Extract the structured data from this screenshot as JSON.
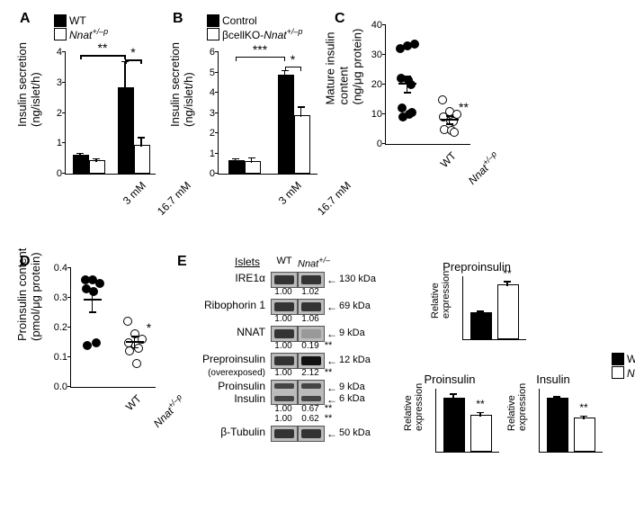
{
  "panelA": {
    "label": "A",
    "legend": [
      {
        "fill": "#000000",
        "label": "WT"
      },
      {
        "fill": "#ffffff",
        "label": "Nnat",
        "labelSup": "+/–p",
        "italic": true
      }
    ],
    "ylabel": "Insulin secretion\n(ng/islet/h)",
    "ymax": 4,
    "ytick_step": 1,
    "groups": [
      "3 mM",
      "16.7 mM"
    ],
    "bars": [
      {
        "group": 0,
        "series": 0,
        "value": 0.55,
        "err": 0.12,
        "fill": "#000000"
      },
      {
        "group": 0,
        "series": 1,
        "value": 0.4,
        "err": 0.1,
        "fill": "#ffffff"
      },
      {
        "group": 1,
        "series": 0,
        "value": 2.8,
        "err": 0.9,
        "fill": "#000000"
      },
      {
        "group": 1,
        "series": 1,
        "value": 0.9,
        "err": 0.3,
        "fill": "#ffffff"
      }
    ],
    "sig": [
      {
        "from": 0,
        "to": 2,
        "y": 3.9,
        "stars": "**"
      },
      {
        "from": 2,
        "to": 3,
        "y": 3.75,
        "stars": "*"
      }
    ]
  },
  "panelB": {
    "label": "B",
    "legend": [
      {
        "fill": "#000000",
        "label": "Control"
      },
      {
        "fill": "#ffffff",
        "label": "βcellKO-",
        "label2": "Nnat",
        "labelSup": "+/–p",
        "italic2": true
      }
    ],
    "ylabel": "Insulin secretion\n(ng/islet/h)",
    "ymax": 6,
    "ytick_step": 1,
    "groups": [
      "3 mM",
      "16.7 mM"
    ],
    "bars": [
      {
        "group": 0,
        "series": 0,
        "value": 0.6,
        "err": 0.15,
        "fill": "#000000"
      },
      {
        "group": 0,
        "series": 1,
        "value": 0.55,
        "err": 0.25,
        "fill": "#ffffff"
      },
      {
        "group": 1,
        "series": 0,
        "value": 4.8,
        "err": 0.3,
        "fill": "#000000"
      },
      {
        "group": 1,
        "series": 1,
        "value": 2.8,
        "err": 0.5,
        "fill": "#ffffff"
      }
    ],
    "sig": [
      {
        "from": 0,
        "to": 2,
        "y": 5.8,
        "stars": "***"
      },
      {
        "from": 2,
        "to": 3,
        "y": 5.3,
        "stars": "*"
      }
    ]
  },
  "panelC": {
    "label": "C",
    "ylabel": "Mature insulin\ncontent\n(ng/μg protein)",
    "ymax": 40,
    "ytick_step": 10,
    "xlabels": [
      "WT",
      "Nnat"
    ],
    "xlabelSup": [
      null,
      "+/–p"
    ],
    "groups": [
      {
        "fill": "#000000",
        "points": [
          32,
          33,
          33.5,
          22,
          21.5,
          20,
          12,
          10,
          10.5,
          9
        ],
        "mean": 20,
        "err": 3,
        "sig": null
      },
      {
        "fill": "#ffffff",
        "points": [
          15,
          11,
          10,
          9,
          8,
          7.5,
          5,
          4.5,
          4
        ],
        "mean": 8,
        "err": 1.5,
        "sig": "**"
      }
    ]
  },
  "panelD": {
    "label": "D",
    "ylabel": "Proinsulin content\n(pmol/μg protein)",
    "ymax": 0.4,
    "ytick_step": 0.1,
    "xlabels": [
      "WT",
      "Nnat"
    ],
    "xlabelSup": [
      null,
      "+/–p"
    ],
    "groups": [
      {
        "fill": "#000000",
        "points": [
          0.36,
          0.36,
          0.35,
          0.33,
          0.32,
          0.15,
          0.14
        ],
        "mean": 0.29,
        "err": 0.04,
        "sig": null
      },
      {
        "fill": "#ffffff",
        "points": [
          0.22,
          0.18,
          0.16,
          0.15,
          0.14,
          0.13,
          0.12,
          0.08
        ],
        "mean": 0.15,
        "err": 0.02,
        "sig": "*"
      }
    ]
  },
  "panelE": {
    "label": "E",
    "headerLeft": "Islets",
    "columns": [
      "WT",
      "Nnat"
    ],
    "columnsSup": [
      null,
      "+/–p"
    ],
    "rows": [
      {
        "name": "IRE1α",
        "kda": "130 kDa",
        "quant": [
          "1.00",
          "1.02"
        ],
        "sig": ""
      },
      {
        "name": "Ribophorin 1",
        "kda": "69 kDa",
        "quant": [
          "1.00",
          "1.06"
        ],
        "sig": ""
      },
      {
        "name": "NNAT",
        "kda": "9 kDa",
        "quant": [
          "1.00",
          "0.19"
        ],
        "sig": "**"
      },
      {
        "name": "Preproinsulin",
        "sub": "(overexposed)",
        "kda": "12 kDa",
        "quant": [
          "1.00",
          "2.12"
        ],
        "sig": "**"
      },
      {
        "name": "Proinsulin\nInsulin",
        "kda": "9 kDa\n6 kDa",
        "quant": [
          "1.00\n1.00",
          "0.67\n0.62"
        ],
        "sig": "**\n**",
        "double": true
      },
      {
        "name": "β-Tubulin",
        "kda": "50 kDa",
        "quant": null
      }
    ],
    "miniCharts": [
      {
        "title": "Preproinsulin",
        "wt": 1.0,
        "wterr": 0.12,
        "ko": 2.1,
        "koerr": 0.2,
        "sig": "**",
        "ymax": 2.5
      },
      {
        "title": "Proinsulin",
        "wt": 1.0,
        "wterr": 0.1,
        "ko": 0.67,
        "koerr": 0.08,
        "sig": "**",
        "ymax": 1.2
      },
      {
        "title": "Insulin",
        "wt": 1.0,
        "wterr": 0.05,
        "ko": 0.62,
        "koerr": 0.06,
        "sig": "**",
        "ymax": 1.2
      }
    ],
    "miniLegend": [
      {
        "fill": "#000000",
        "label": "WT"
      },
      {
        "fill": "#ffffff",
        "label": "Nnat",
        "labelSup": "+/–p",
        "italic": true
      }
    ],
    "miniYLabel": "Relative\nexpression"
  }
}
